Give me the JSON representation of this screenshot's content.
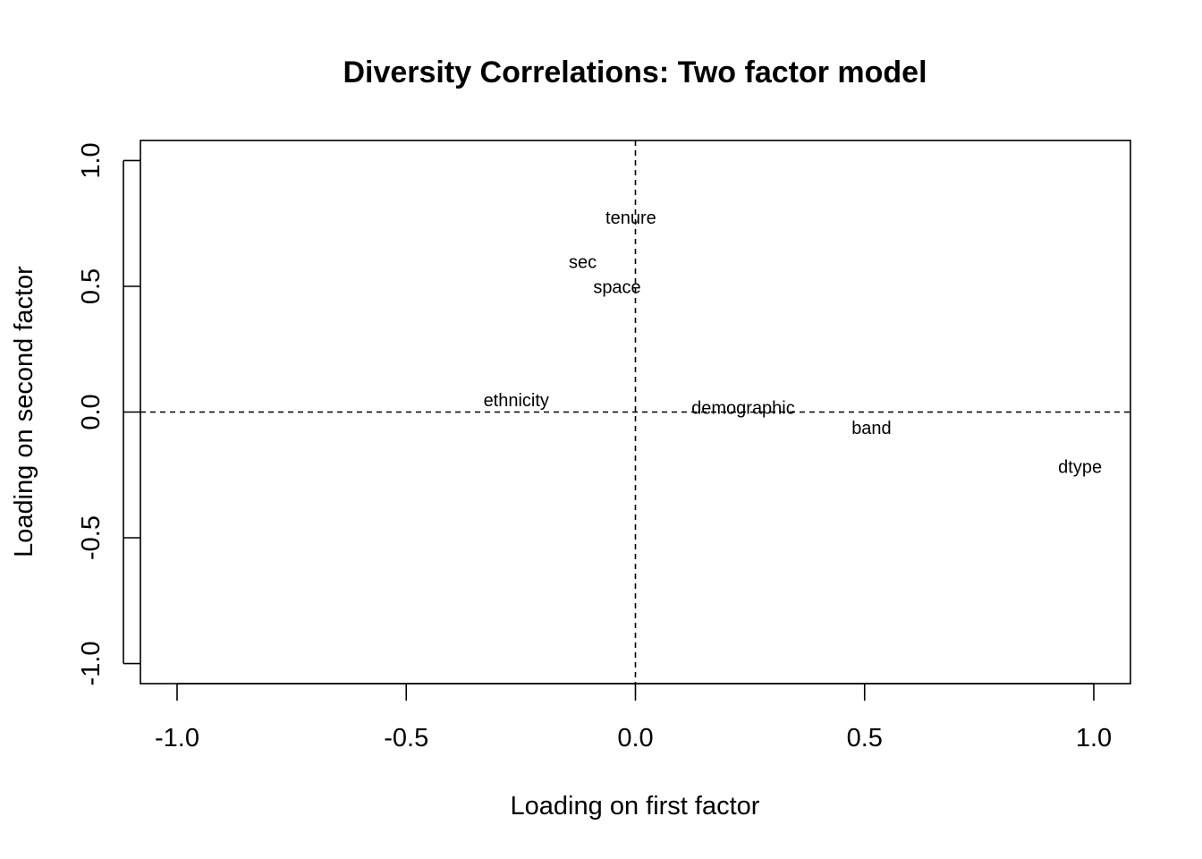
{
  "chart_data": {
    "type": "scatter",
    "title": "Diversity Correlations: Two factor model",
    "xlabel": "Loading on first factor",
    "ylabel": "Loading on second factor",
    "xlim": [
      -1.08,
      1.08
    ],
    "ylim": [
      -1.08,
      1.08
    ],
    "xticks": [
      -1.0,
      -0.5,
      0.0,
      0.5,
      1.0
    ],
    "yticks": [
      -1.0,
      -0.5,
      0.0,
      0.5,
      1.0
    ],
    "xtick_labels": [
      "-1.0",
      "-0.5",
      "0.0",
      "0.5",
      "1.0"
    ],
    "ytick_labels": [
      "-1.0",
      "-0.5",
      "0.0",
      "0.5",
      "1.0"
    ],
    "reference_lines": {
      "x": 0,
      "y": 0,
      "style": "dashed"
    },
    "grid": false,
    "points": [
      {
        "label": "tenure",
        "x": -0.01,
        "y": 0.77
      },
      {
        "label": "sec",
        "x": -0.115,
        "y": 0.595
      },
      {
        "label": "space",
        "x": -0.04,
        "y": 0.495
      },
      {
        "label": "ethnicity",
        "x": -0.26,
        "y": 0.045
      },
      {
        "label": "demographic",
        "x": 0.235,
        "y": 0.015
      },
      {
        "label": "band",
        "x": 0.515,
        "y": -0.065
      },
      {
        "label": "dtype",
        "x": 0.97,
        "y": -0.22
      }
    ]
  }
}
